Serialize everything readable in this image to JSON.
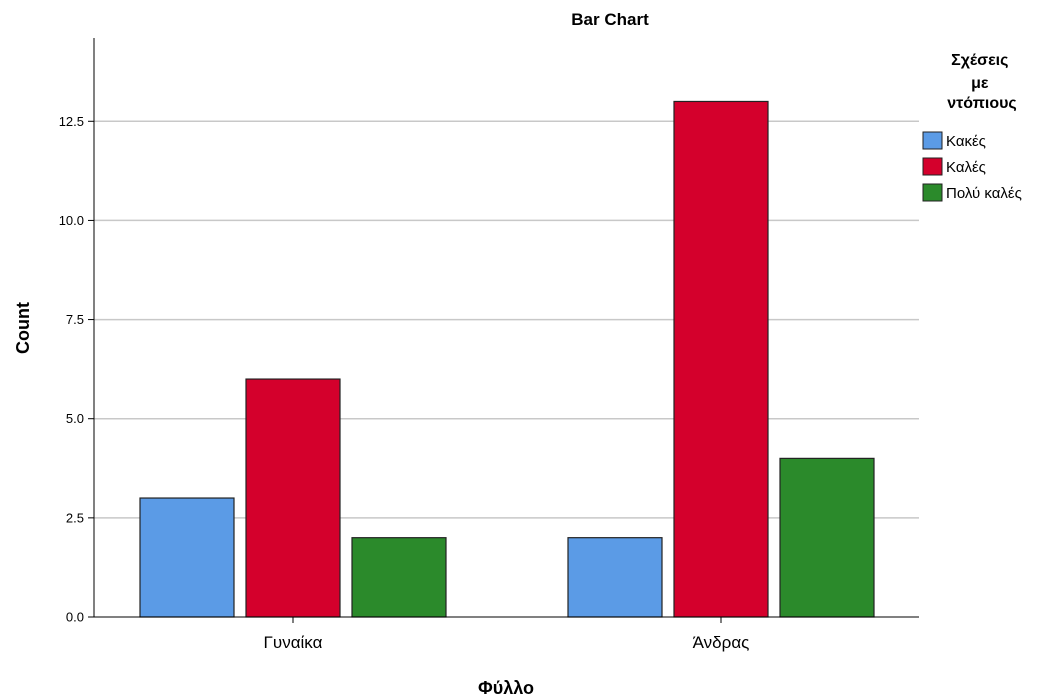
{
  "chart_data": {
    "type": "bar",
    "title": "Bar Chart",
    "xlabel": "Φύλλο",
    "ylabel": "Count",
    "categories": [
      "Γυναίκα",
      "Άνδρας"
    ],
    "series": [
      {
        "name": "Κακές",
        "values": [
          3,
          2
        ],
        "color": "#5b9be6"
      },
      {
        "name": "Καλές",
        "values": [
          6,
          13
        ],
        "color": "#d4002c"
      },
      {
        "name": "Πολύ καλές",
        "values": [
          2,
          4
        ],
        "color": "#2b8a2b"
      }
    ],
    "ylim": [
      0,
      14.6
    ],
    "yticks": [
      "0.0",
      "2.5",
      "5.0",
      "7.5",
      "10.0",
      "12.5"
    ],
    "ytick_values": [
      0,
      2.5,
      5,
      7.5,
      10,
      12.5
    ],
    "grid": true,
    "legend": {
      "title_lines": [
        "Σχέσεις",
        "με",
        "ντόπιους"
      ],
      "placement": "right"
    }
  }
}
